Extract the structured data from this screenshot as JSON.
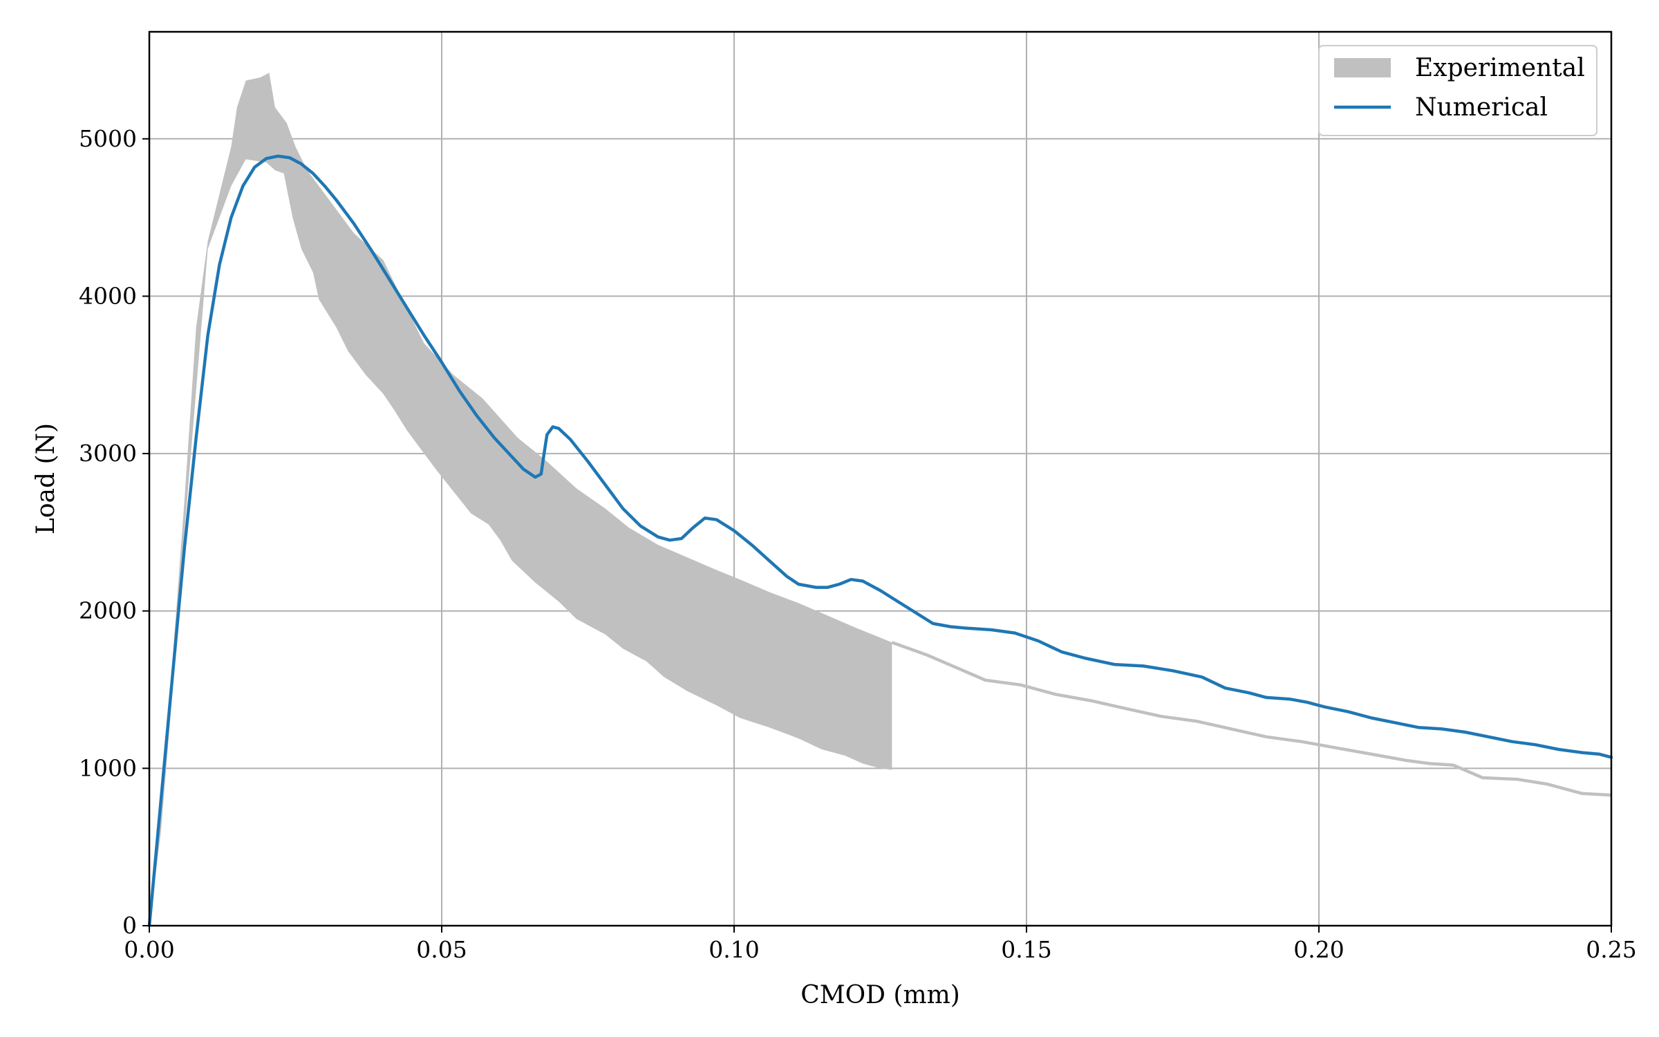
{
  "chart_data": {
    "type": "line",
    "xlabel": "CMOD (mm)",
    "ylabel": "Load (N)",
    "xlim": [
      0.0,
      0.25
    ],
    "ylim": [
      0,
      5680
    ],
    "xticks": [
      0.0,
      0.05,
      0.1,
      0.15,
      0.2,
      0.25
    ],
    "xtick_labels": [
      "0.00",
      "0.05",
      "0.10",
      "0.15",
      "0.20",
      "0.25"
    ],
    "yticks": [
      0,
      1000,
      2000,
      3000,
      4000,
      5000
    ],
    "ytick_labels": [
      "0",
      "1000",
      "2000",
      "3000",
      "4000",
      "5000"
    ],
    "grid": true,
    "legend_position": "top-right",
    "colors": {
      "experimental": "#c0c0c0",
      "numerical": "#1f77b4",
      "grid": "#b0b0b0"
    },
    "series": [
      {
        "name": "Experimental",
        "kind": "band",
        "upper": [
          [
            0.0,
            0
          ],
          [
            0.002,
            700
          ],
          [
            0.004,
            1700
          ],
          [
            0.006,
            2700
          ],
          [
            0.008,
            3800
          ],
          [
            0.01,
            4350
          ],
          [
            0.012,
            4650
          ],
          [
            0.014,
            4950
          ],
          [
            0.015,
            5200
          ],
          [
            0.0165,
            5370
          ],
          [
            0.019,
            5390
          ],
          [
            0.0205,
            5420
          ],
          [
            0.0215,
            5200
          ],
          [
            0.0235,
            5100
          ],
          [
            0.025,
            4950
          ],
          [
            0.027,
            4800
          ],
          [
            0.03,
            4650
          ],
          [
            0.035,
            4400
          ],
          [
            0.04,
            4230
          ],
          [
            0.043,
            4000
          ],
          [
            0.047,
            3700
          ],
          [
            0.052,
            3500
          ],
          [
            0.057,
            3350
          ],
          [
            0.063,
            3100
          ],
          [
            0.068,
            2950
          ],
          [
            0.073,
            2780
          ],
          [
            0.078,
            2650
          ],
          [
            0.082,
            2530
          ],
          [
            0.087,
            2420
          ],
          [
            0.092,
            2340
          ],
          [
            0.097,
            2260
          ],
          [
            0.101,
            2200
          ],
          [
            0.106,
            2120
          ],
          [
            0.111,
            2050
          ],
          [
            0.116,
            1970
          ],
          [
            0.121,
            1890
          ],
          [
            0.127,
            1800
          ]
        ],
        "lower": [
          [
            0.0,
            0
          ],
          [
            0.002,
            600
          ],
          [
            0.004,
            1500
          ],
          [
            0.006,
            2500
          ],
          [
            0.008,
            3400
          ],
          [
            0.01,
            4300
          ],
          [
            0.012,
            4500
          ],
          [
            0.014,
            4700
          ],
          [
            0.0165,
            4870
          ],
          [
            0.02,
            4850
          ],
          [
            0.0215,
            4800
          ],
          [
            0.023,
            4780
          ],
          [
            0.0245,
            4500
          ],
          [
            0.026,
            4300
          ],
          [
            0.028,
            4150
          ],
          [
            0.029,
            3980
          ],
          [
            0.032,
            3800
          ],
          [
            0.034,
            3650
          ],
          [
            0.037,
            3500
          ],
          [
            0.04,
            3380
          ],
          [
            0.042,
            3270
          ],
          [
            0.044,
            3150
          ],
          [
            0.047,
            3000
          ],
          [
            0.049,
            2900
          ],
          [
            0.052,
            2760
          ],
          [
            0.055,
            2620
          ],
          [
            0.058,
            2550
          ],
          [
            0.06,
            2450
          ],
          [
            0.062,
            2320
          ],
          [
            0.066,
            2180
          ],
          [
            0.07,
            2060
          ],
          [
            0.073,
            1950
          ],
          [
            0.078,
            1850
          ],
          [
            0.081,
            1760
          ],
          [
            0.085,
            1680
          ],
          [
            0.088,
            1580
          ],
          [
            0.092,
            1490
          ],
          [
            0.097,
            1400
          ],
          [
            0.101,
            1320
          ],
          [
            0.106,
            1260
          ],
          [
            0.111,
            1190
          ],
          [
            0.115,
            1120
          ],
          [
            0.119,
            1080
          ],
          [
            0.122,
            1030
          ],
          [
            0.125,
            1000
          ],
          [
            0.127,
            990
          ]
        ],
        "tail": [
          [
            0.127,
            1800
          ],
          [
            0.133,
            1720
          ],
          [
            0.138,
            1640
          ],
          [
            0.143,
            1560
          ],
          [
            0.149,
            1530
          ],
          [
            0.155,
            1470
          ],
          [
            0.161,
            1430
          ],
          [
            0.167,
            1380
          ],
          [
            0.173,
            1330
          ],
          [
            0.179,
            1300
          ],
          [
            0.185,
            1250
          ],
          [
            0.191,
            1200
          ],
          [
            0.197,
            1170
          ],
          [
            0.203,
            1130
          ],
          [
            0.209,
            1090
          ],
          [
            0.215,
            1050
          ],
          [
            0.219,
            1030
          ],
          [
            0.223,
            1020
          ],
          [
            0.228,
            940
          ],
          [
            0.234,
            930
          ],
          [
            0.239,
            900
          ],
          [
            0.245,
            840
          ],
          [
            0.25,
            830
          ]
        ]
      },
      {
        "name": "Numerical",
        "kind": "line",
        "points": [
          [
            0.0,
            0
          ],
          [
            0.002,
            800
          ],
          [
            0.004,
            1600
          ],
          [
            0.006,
            2400
          ],
          [
            0.008,
            3100
          ],
          [
            0.01,
            3750
          ],
          [
            0.012,
            4200
          ],
          [
            0.014,
            4500
          ],
          [
            0.016,
            4700
          ],
          [
            0.018,
            4820
          ],
          [
            0.02,
            4875
          ],
          [
            0.022,
            4890
          ],
          [
            0.024,
            4880
          ],
          [
            0.026,
            4840
          ],
          [
            0.028,
            4780
          ],
          [
            0.03,
            4700
          ],
          [
            0.032,
            4610
          ],
          [
            0.035,
            4460
          ],
          [
            0.038,
            4290
          ],
          [
            0.041,
            4110
          ],
          [
            0.044,
            3930
          ],
          [
            0.047,
            3750
          ],
          [
            0.05,
            3580
          ],
          [
            0.053,
            3400
          ],
          [
            0.056,
            3240
          ],
          [
            0.059,
            3100
          ],
          [
            0.062,
            2980
          ],
          [
            0.064,
            2900
          ],
          [
            0.066,
            2850
          ],
          [
            0.067,
            2870
          ],
          [
            0.0675,
            3000
          ],
          [
            0.068,
            3120
          ],
          [
            0.069,
            3170
          ],
          [
            0.07,
            3160
          ],
          [
            0.072,
            3090
          ],
          [
            0.075,
            2950
          ],
          [
            0.078,
            2800
          ],
          [
            0.081,
            2650
          ],
          [
            0.084,
            2540
          ],
          [
            0.087,
            2470
          ],
          [
            0.089,
            2450
          ],
          [
            0.091,
            2460
          ],
          [
            0.093,
            2530
          ],
          [
            0.095,
            2590
          ],
          [
            0.097,
            2580
          ],
          [
            0.1,
            2510
          ],
          [
            0.103,
            2420
          ],
          [
            0.106,
            2320
          ],
          [
            0.109,
            2220
          ],
          [
            0.111,
            2170
          ],
          [
            0.114,
            2150
          ],
          [
            0.116,
            2150
          ],
          [
            0.118,
            2170
          ],
          [
            0.12,
            2200
          ],
          [
            0.122,
            2190
          ],
          [
            0.125,
            2130
          ],
          [
            0.128,
            2060
          ],
          [
            0.131,
            1990
          ],
          [
            0.134,
            1920
          ],
          [
            0.137,
            1900
          ],
          [
            0.14,
            1890
          ],
          [
            0.144,
            1880
          ],
          [
            0.148,
            1860
          ],
          [
            0.152,
            1810
          ],
          [
            0.156,
            1740
          ],
          [
            0.16,
            1700
          ],
          [
            0.165,
            1660
          ],
          [
            0.17,
            1650
          ],
          [
            0.175,
            1620
          ],
          [
            0.18,
            1580
          ],
          [
            0.184,
            1510
          ],
          [
            0.188,
            1480
          ],
          [
            0.191,
            1450
          ],
          [
            0.195,
            1440
          ],
          [
            0.198,
            1420
          ],
          [
            0.201,
            1390
          ],
          [
            0.205,
            1360
          ],
          [
            0.209,
            1320
          ],
          [
            0.213,
            1290
          ],
          [
            0.217,
            1260
          ],
          [
            0.221,
            1250
          ],
          [
            0.225,
            1230
          ],
          [
            0.229,
            1200
          ],
          [
            0.233,
            1170
          ],
          [
            0.237,
            1150
          ],
          [
            0.241,
            1120
          ],
          [
            0.245,
            1100
          ],
          [
            0.248,
            1090
          ],
          [
            0.25,
            1070
          ]
        ]
      }
    ]
  }
}
